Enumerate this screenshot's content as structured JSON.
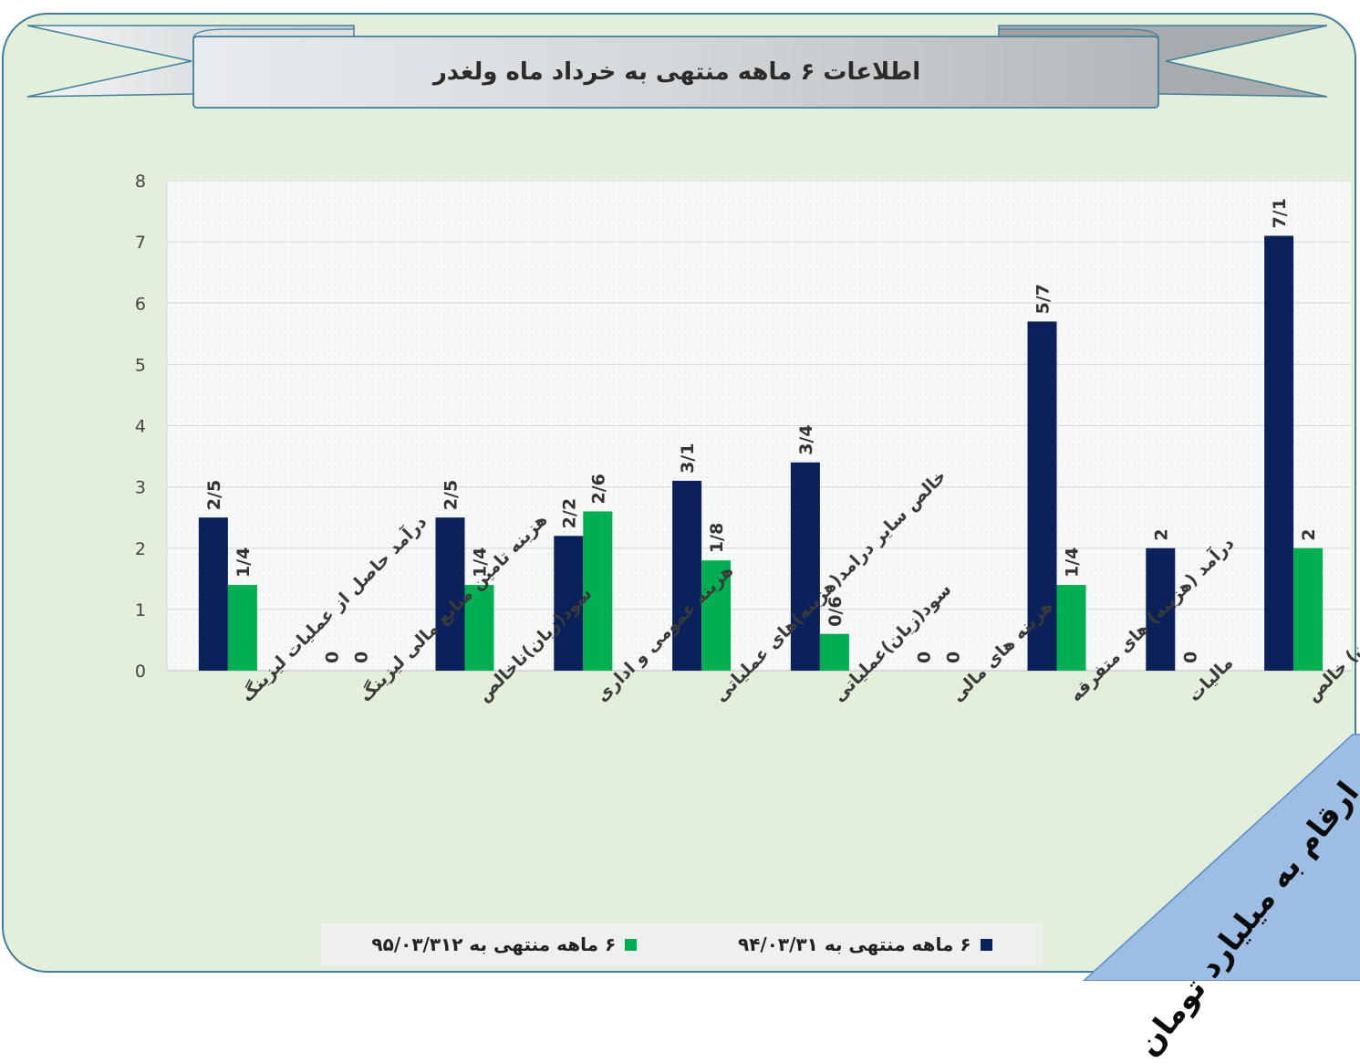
{
  "title": "اطلاعات ۶ ماهه منتهی به خرداد ماه ولغدر",
  "unit_note": "ارقام به میلیارد تومان",
  "colors": {
    "series1": "#0b215c",
    "series2": "#00b050",
    "frame_border": "#3f7f9b",
    "background": "#e3eedb",
    "corner": "#9dbde4"
  },
  "legend": [
    {
      "label": "۶ ماهه منتهی به ۹۴/۰۳/۳۱",
      "color": "#0b215c"
    },
    {
      "label": "۶ ماهه منتهی به ۹۵/۰۳/۳۱۲",
      "color": "#00b050"
    }
  ],
  "chart_data": {
    "type": "bar",
    "categories": [
      "درآمد حاصل از عملیات لیزینگ",
      "هزینه تامین منابع مالی لیزینگ",
      "سود(زیان)ناخالص",
      "هزینه عمومی و اداری",
      "خالص سایر درامد(هزینه)های عملیاتی",
      "سود(زیان)عملیاتی",
      "هزینه های مالی",
      "درآمد (هزینه) های متفرقه",
      "مالیات",
      "سود(زیان) خالص"
    ],
    "series": [
      {
        "name": "۶ ماهه منتهی به ۹۴/۰۳/۳۱",
        "values": [
          2.5,
          0,
          2.5,
          2.2,
          3.1,
          3.4,
          0,
          5.7,
          2,
          7.1
        ],
        "labels": [
          "2/5",
          "0",
          "2/5",
          "2/2",
          "3/1",
          "3/4",
          "0",
          "5/7",
          "2",
          "7/1"
        ]
      },
      {
        "name": "۶ ماهه منتهی به ۹۵/۰۳/۳۱۲",
        "values": [
          1.4,
          0,
          1.4,
          2.6,
          1.8,
          0.6,
          0,
          1.4,
          0,
          2
        ],
        "labels": [
          "1/4",
          "0",
          "1/4",
          "2/6",
          "1/8",
          "0/6",
          "0",
          "1/4",
          "0",
          "2"
        ]
      }
    ],
    "ylim": [
      0,
      8
    ],
    "yticks": [
      0,
      1,
      2,
      3,
      4,
      5,
      6,
      7,
      8
    ],
    "grid": true,
    "legend_position": "bottom"
  }
}
